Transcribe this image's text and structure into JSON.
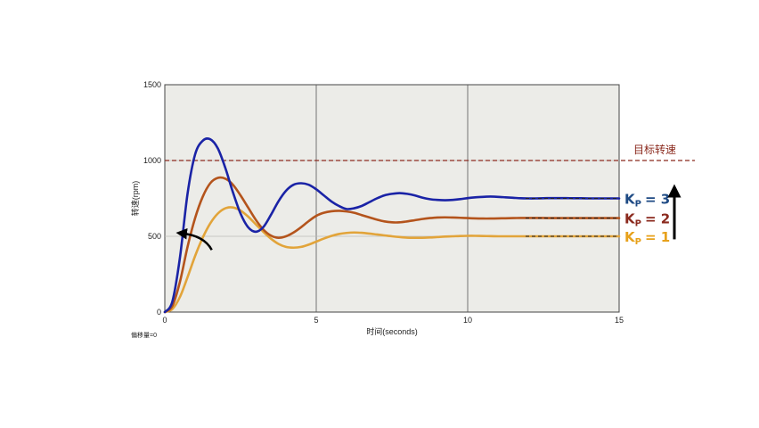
{
  "chart_data": {
    "type": "line",
    "title": "",
    "xlabel": "时间(seconds)",
    "ylabel": "转速(rpm)",
    "xlim": [
      0,
      15
    ],
    "ylim": [
      0,
      1500
    ],
    "xticks": [
      0,
      5,
      10,
      15
    ],
    "yticks": [
      0,
      500,
      1000,
      1500
    ],
    "grid": true,
    "offset_note": "偏移量=0",
    "target": {
      "label": "目标转速",
      "value": 1000,
      "color": "#8b2a1e"
    },
    "series": [
      {
        "name": "KP = 3",
        "legend_main": "K",
        "legend_sub": "P",
        "legend_value": "= 3",
        "color": "#1a23a6",
        "label_color": "#1e4a84",
        "steady": 750,
        "x": [
          0,
          0.25,
          0.5,
          0.75,
          1,
          1.25,
          1.5,
          1.75,
          2,
          2.25,
          2.5,
          2.75,
          3,
          3.25,
          3.5,
          3.75,
          4,
          4.25,
          4.5,
          4.75,
          5,
          5.25,
          5.5,
          5.75,
          6,
          6.25,
          6.5,
          6.75,
          7,
          7.25,
          7.5,
          7.75,
          8,
          8.25,
          8.5,
          8.75,
          9,
          9.25,
          9.5,
          9.75,
          10,
          10.25,
          10.5,
          10.75,
          11,
          11.25,
          11.5,
          11.75,
          12,
          12.25,
          12.5,
          12.75,
          13,
          13.25,
          13.5,
          13.75,
          14,
          14.25,
          14.5,
          14.75,
          15
        ],
        "values": [
          0,
          70,
          360,
          780,
          1040,
          1130,
          1140,
          1080,
          950,
          790,
          650,
          560,
          530,
          560,
          640,
          730,
          800,
          840,
          850,
          840,
          810,
          770,
          730,
          700,
          680,
          685,
          700,
          725,
          750,
          770,
          780,
          785,
          780,
          770,
          755,
          745,
          740,
          738,
          740,
          745,
          752,
          757,
          760,
          762,
          760,
          757,
          754,
          751,
          750,
          750,
          751,
          752,
          752,
          752,
          751,
          751,
          750,
          750,
          750,
          750,
          750
        ]
      },
      {
        "name": "KP = 2",
        "legend_main": "K",
        "legend_sub": "P",
        "legend_value": "= 2",
        "color": "#b4541c",
        "label_color": "#8b2a1e",
        "steady": 620,
        "x": [
          0,
          0.25,
          0.5,
          0.75,
          1,
          1.25,
          1.5,
          1.75,
          2,
          2.25,
          2.5,
          2.75,
          3,
          3.25,
          3.5,
          3.75,
          4,
          4.25,
          4.5,
          4.75,
          5,
          5.25,
          5.5,
          5.75,
          6,
          6.25,
          6.5,
          6.75,
          7,
          7.25,
          7.5,
          7.75,
          8,
          8.25,
          8.5,
          8.75,
          9,
          9.25,
          9.5,
          9.75,
          10,
          10.25,
          10.5,
          10.75,
          11,
          11.25,
          11.5,
          11.75,
          12,
          12.25,
          12.5,
          12.75,
          13,
          13.25,
          13.5,
          13.75,
          14,
          14.25,
          14.5,
          14.75,
          15
        ],
        "values": [
          0,
          40,
          200,
          430,
          620,
          760,
          850,
          885,
          880,
          840,
          770,
          690,
          610,
          545,
          505,
          490,
          500,
          525,
          560,
          600,
          635,
          655,
          665,
          668,
          664,
          655,
          640,
          625,
          610,
          598,
          592,
          592,
          598,
          606,
          614,
          620,
          624,
          625,
          624,
          622,
          620,
          618,
          617,
          617,
          618,
          619,
          620,
          621,
          621,
          621,
          621,
          620,
          620,
          620,
          620,
          620,
          620,
          620,
          620,
          620,
          620
        ]
      },
      {
        "name": "KP = 1",
        "legend_main": "K",
        "legend_sub": "P",
        "legend_value": "= 1",
        "color": "#e2a43a",
        "label_color": "#e7a11b",
        "steady": 500,
        "x": [
          0,
          0.25,
          0.5,
          0.75,
          1,
          1.25,
          1.5,
          1.75,
          2,
          2.25,
          2.5,
          2.75,
          3,
          3.25,
          3.5,
          3.75,
          4,
          4.25,
          4.5,
          4.75,
          5,
          5.25,
          5.5,
          5.75,
          6,
          6.25,
          6.5,
          6.75,
          7,
          7.25,
          7.5,
          7.75,
          8,
          8.25,
          8.5,
          8.75,
          9,
          9.25,
          9.5,
          9.75,
          10,
          10.25,
          10.5,
          10.75,
          11,
          11.25,
          11.5,
          11.75,
          12,
          12.25,
          12.5,
          12.75,
          13,
          13.25,
          13.5,
          13.75,
          14,
          14.25,
          14.5,
          14.75,
          15
        ],
        "values": [
          0,
          20,
          100,
          230,
          370,
          490,
          585,
          650,
          685,
          690,
          670,
          630,
          580,
          530,
          485,
          450,
          430,
          425,
          430,
          445,
          465,
          485,
          502,
          515,
          522,
          525,
          523,
          518,
          512,
          506,
          500,
          495,
          491,
          490,
          490,
          492,
          495,
          498,
          500,
          502,
          503,
          503,
          502,
          501,
          500,
          500,
          500,
          500,
          500,
          500,
          500,
          500,
          500,
          500,
          500,
          500,
          500,
          500,
          500,
          500,
          500
        ]
      }
    ]
  }
}
